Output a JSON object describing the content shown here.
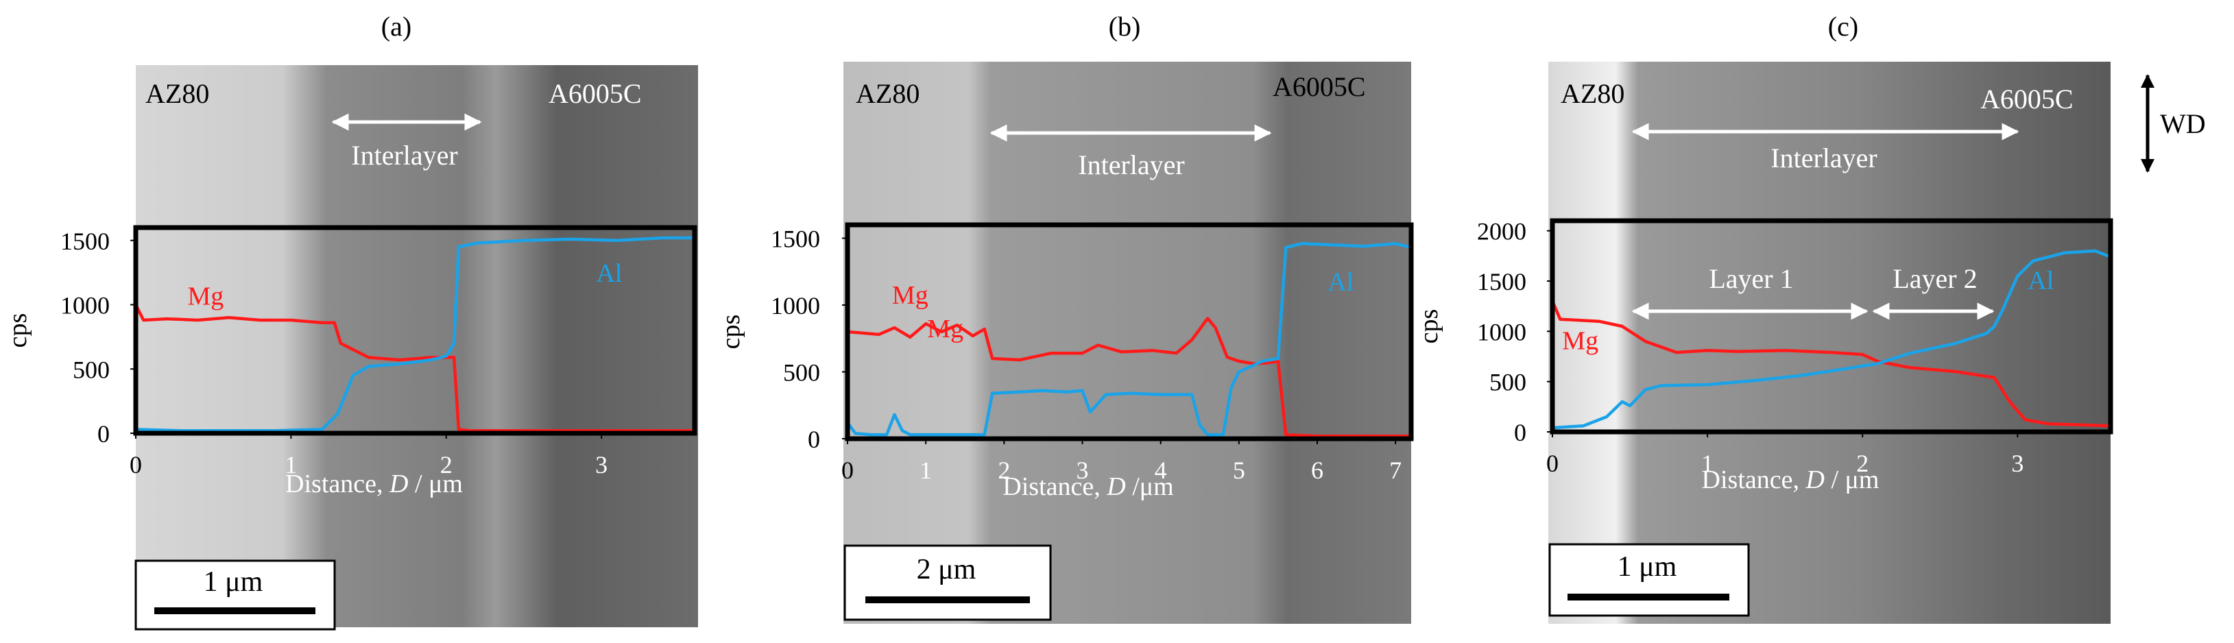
{
  "panels": [
    {
      "id": "a",
      "label": "(a)",
      "left_material": "AZ80",
      "right_material": "A6005C",
      "interlayer_label": "Interlayer",
      "scale_bar": "1 μm",
      "colors": {
        "bg_left": "#cfcfcf",
        "bg_mid": "#8a8a8a",
        "bg_right": "#6a6a6a"
      }
    },
    {
      "id": "b",
      "label": "(b)",
      "left_material": "AZ80",
      "right_material": "A6005C",
      "interlayer_label": "Interlayer",
      "scale_bar": "2 μm",
      "colors": {
        "bg_left": "#c6c6c6",
        "bg_mid": "#9a9a9a",
        "bg_right": "#7a7a7a"
      }
    },
    {
      "id": "c",
      "label": "(c)",
      "left_material": "AZ80",
      "right_material": "A6005C",
      "interlayer_label": "Interlayer",
      "layer1_label": "Layer 1",
      "layer2_label": "Layer 2",
      "wd_label": "WD",
      "scale_bar": "1 μm",
      "colors": {
        "bg_left": "#e2e2e2",
        "bg_mid": "#8d8d8d",
        "bg_right": "#666666"
      }
    }
  ],
  "chart_data": [
    {
      "type": "line",
      "title": "(a)",
      "xlabel_plain": "Distance, ",
      "xlabel_var": "D",
      "xlabel_unit": " / μm",
      "ylabel": "cps",
      "xlim": [
        0,
        3.6
      ],
      "ylim": [
        0,
        1600
      ],
      "xticks": [
        0,
        1,
        2,
        3
      ],
      "yticks": [
        0,
        500,
        1000,
        1500
      ],
      "series": [
        {
          "name": "Mg",
          "color": "#ff1a1a",
          "x": [
            0,
            0.05,
            0.2,
            0.4,
            0.6,
            0.8,
            1.0,
            1.2,
            1.28,
            1.32,
            1.5,
            1.7,
            1.9,
            2.05,
            2.08,
            2.15,
            2.5,
            3.0,
            3.6
          ],
          "y": [
            1000,
            880,
            890,
            880,
            900,
            880,
            880,
            860,
            860,
            700,
            590,
            570,
            590,
            590,
            30,
            20,
            20,
            20,
            20
          ]
        },
        {
          "name": "Al",
          "color": "#1aa3e8",
          "x": [
            0,
            0.3,
            0.6,
            0.9,
            1.2,
            1.3,
            1.4,
            1.5,
            1.7,
            1.9,
            2.0,
            2.05,
            2.08,
            2.2,
            2.5,
            2.8,
            3.1,
            3.4,
            3.6
          ],
          "y": [
            30,
            20,
            20,
            20,
            30,
            150,
            450,
            520,
            540,
            570,
            600,
            700,
            1450,
            1480,
            1500,
            1510,
            1500,
            1520,
            1520
          ]
        }
      ],
      "annotations": [
        {
          "text": "Mg",
          "x": 0.45,
          "y": 1000,
          "color": "#ff1a1a"
        },
        {
          "text": "Al",
          "x": 3.05,
          "y": 1180,
          "color": "#1aa3e8"
        }
      ]
    },
    {
      "type": "line",
      "title": "(b)",
      "xlabel_plain": "Distance, ",
      "xlabel_var": "D",
      "xlabel_unit": " /μm",
      "ylabel": "cps",
      "xlim": [
        0,
        7.2
      ],
      "ylim": [
        0,
        1600
      ],
      "xticks": [
        0,
        1,
        2,
        3,
        4,
        5,
        6,
        7
      ],
      "yticks": [
        0,
        500,
        1000,
        1500
      ],
      "series": [
        {
          "name": "Mg",
          "color": "#ff1a1a",
          "x": [
            0,
            0.2,
            0.4,
            0.6,
            0.8,
            1.0,
            1.2,
            1.4,
            1.6,
            1.75,
            1.85,
            2.2,
            2.6,
            3.0,
            3.2,
            3.5,
            3.9,
            4.2,
            4.4,
            4.6,
            4.7,
            4.85,
            5.0,
            5.2,
            5.4,
            5.5,
            5.6,
            6.0,
            6.5,
            7.2
          ],
          "y": [
            800,
            790,
            780,
            830,
            760,
            860,
            800,
            850,
            770,
            820,
            600,
            590,
            640,
            640,
            700,
            650,
            660,
            640,
            740,
            900,
            830,
            610,
            580,
            560,
            570,
            580,
            30,
            20,
            20,
            20
          ]
        },
        {
          "name": "Al",
          "color": "#1aa3e8",
          "x": [
            0,
            0.1,
            0.3,
            0.5,
            0.6,
            0.7,
            0.8,
            1.0,
            1.4,
            1.75,
            1.85,
            2.2,
            2.5,
            2.8,
            3.0,
            3.1,
            3.3,
            3.6,
            4.0,
            4.4,
            4.5,
            4.6,
            4.8,
            4.9,
            5.0,
            5.3,
            5.5,
            5.6,
            5.8,
            6.2,
            6.6,
            7.0,
            7.2
          ],
          "y": [
            120,
            40,
            30,
            30,
            180,
            60,
            30,
            30,
            30,
            30,
            340,
            350,
            360,
            350,
            360,
            200,
            330,
            340,
            330,
            330,
            100,
            30,
            30,
            380,
            500,
            580,
            600,
            1430,
            1460,
            1450,
            1440,
            1460,
            1430
          ]
        }
      ],
      "annotations": [
        {
          "text": "Mg",
          "x": 0.8,
          "y": 1010,
          "color": "#ff1a1a"
        },
        {
          "text": "Mg",
          "x": 1.25,
          "y": 760,
          "color": "#ff1a1a"
        },
        {
          "text": "Al",
          "x": 6.3,
          "y": 1110,
          "color": "#1aa3e8"
        }
      ]
    },
    {
      "type": "line",
      "title": "(c)",
      "xlabel_plain": "Distance, ",
      "xlabel_var": "D",
      "xlabel_unit": " / μm",
      "ylabel": "cps",
      "xlim": [
        0,
        3.6
      ],
      "ylim": [
        0,
        2100
      ],
      "xticks": [
        0,
        1,
        2,
        3
      ],
      "yticks": [
        0,
        500,
        1000,
        1500,
        2000
      ],
      "series": [
        {
          "name": "Mg",
          "color": "#ff1a1a",
          "x": [
            0,
            0.05,
            0.3,
            0.45,
            0.6,
            0.8,
            1.0,
            1.2,
            1.5,
            1.8,
            2.0,
            2.1,
            2.3,
            2.6,
            2.85,
            2.95,
            3.05,
            3.2,
            3.4,
            3.6
          ],
          "y": [
            1300,
            1120,
            1100,
            1050,
            900,
            790,
            810,
            800,
            810,
            790,
            770,
            700,
            640,
            600,
            540,
            300,
            120,
            80,
            70,
            60
          ]
        },
        {
          "name": "Al",
          "color": "#1aa3e8",
          "x": [
            0,
            0.2,
            0.35,
            0.45,
            0.5,
            0.6,
            0.7,
            1.0,
            1.3,
            1.6,
            1.9,
            2.1,
            2.3,
            2.6,
            2.8,
            2.85,
            2.9,
            3.0,
            3.1,
            3.3,
            3.5,
            3.6
          ],
          "y": [
            40,
            60,
            150,
            300,
            260,
            420,
            460,
            470,
            510,
            560,
            630,
            680,
            780,
            880,
            980,
            1050,
            1200,
            1550,
            1700,
            1780,
            1800,
            1740
          ]
        }
      ],
      "annotations": [
        {
          "text": "Mg",
          "x": 0.18,
          "y": 820,
          "color": "#ff1a1a"
        },
        {
          "text": "Al",
          "x": 3.15,
          "y": 1420,
          "color": "#1aa3e8"
        }
      ]
    }
  ]
}
